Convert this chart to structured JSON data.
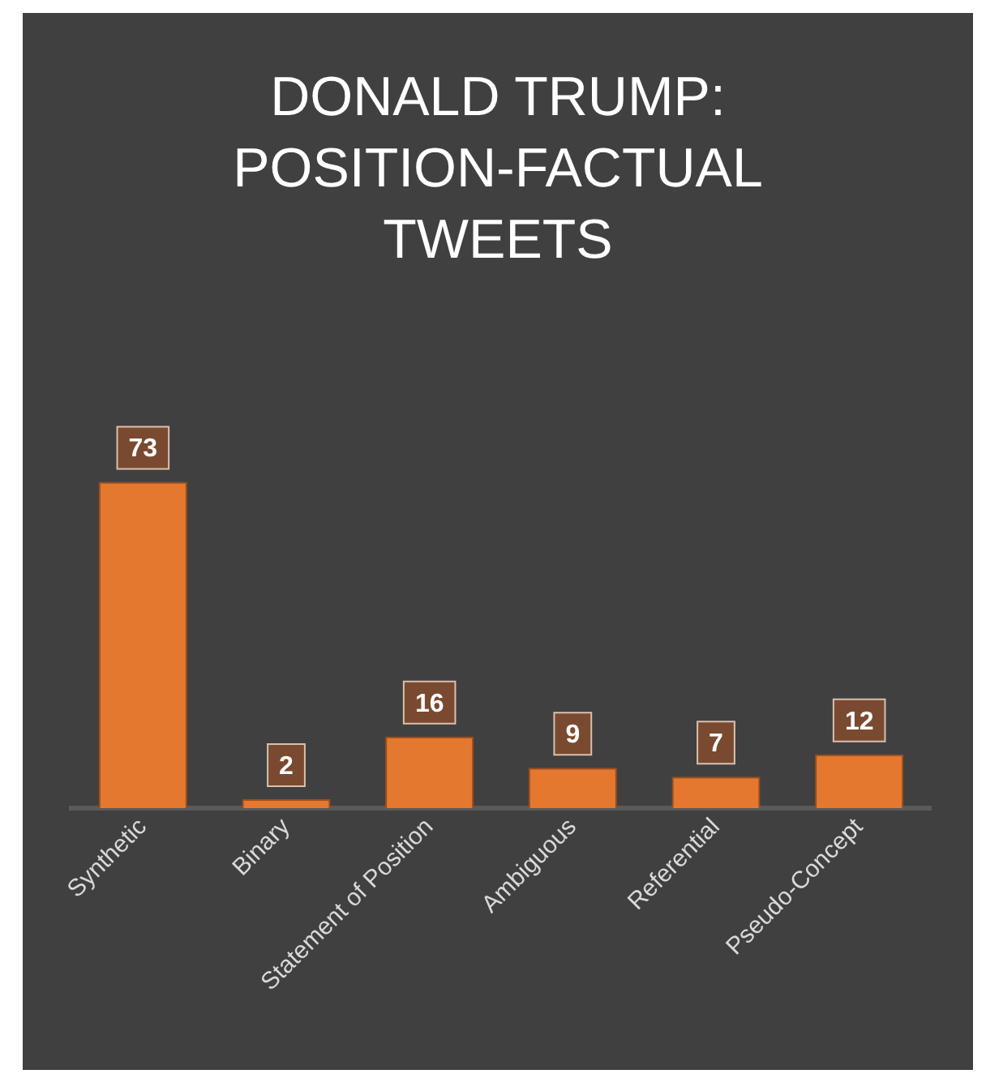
{
  "chart_data": {
    "type": "bar",
    "title": "DONALD TRUMP: POSITION-FACTUAL TWEETS",
    "categories": [
      "Synthetic",
      "Binary",
      "Statement of Position",
      "Ambiguous",
      "Referential",
      "Pseudo-Concept"
    ],
    "values": [
      73,
      2,
      16,
      9,
      7,
      12
    ],
    "color": "#e5782f",
    "data_labels": true,
    "grid": false,
    "legend": false
  }
}
